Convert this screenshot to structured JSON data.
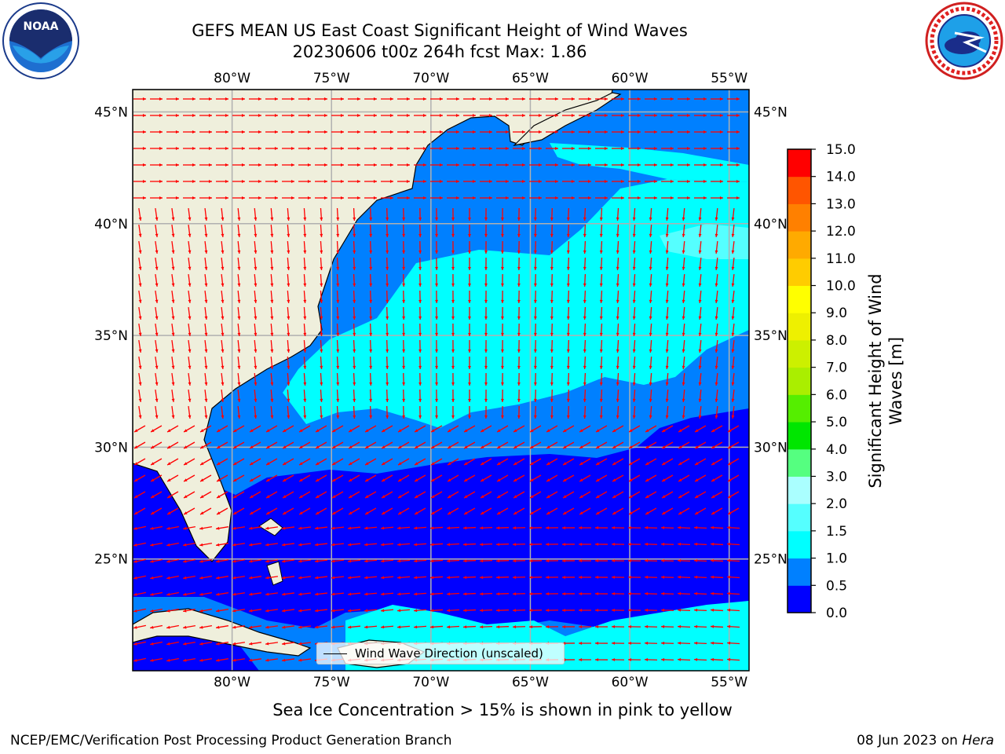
{
  "title": {
    "line1": "GEFS MEAN US East Coast Significant Height of Wind Waves",
    "line2": "20230606 t00z 264h fcst   Max: 1.86"
  },
  "logos": {
    "left": "noaa-logo-icon",
    "right": "nws-logo-icon",
    "left_text": "NOAA"
  },
  "map": {
    "lon_labels": [
      "80°W",
      "75°W",
      "70°W",
      "65°W",
      "60°W",
      "55°W"
    ],
    "lat_labels": [
      "45°N",
      "40°N",
      "35°N",
      "30°N",
      "25°N"
    ],
    "lon_range": [
      -85,
      -54
    ],
    "lat_range": [
      20,
      46
    ],
    "gridlines": true,
    "land_color": "#efefdc",
    "arrow_color": "#ff0000",
    "legend_label": "Wind Wave Direction (unscaled)",
    "legend_placement": "bottom-center"
  },
  "colorbar": {
    "label_line1": "Significant Height of Wind",
    "label_line2": "Waves [m]",
    "ticks": [
      "0.0",
      "0.5",
      "1.0",
      "1.5",
      "2.0",
      "3.0",
      "4.0",
      "5.0",
      "6.0",
      "7.0",
      "8.0",
      "9.0",
      "10.0",
      "11.0",
      "12.0",
      "13.0",
      "14.0",
      "15.0"
    ],
    "colors": [
      "#0000ff",
      "#0080ff",
      "#00ffff",
      "#55ffff",
      "#aaffff",
      "#55ff80",
      "#00e600",
      "#55ee00",
      "#aaee00",
      "#ccf000",
      "#eef000",
      "#ffff00",
      "#ffcc00",
      "#ffaa00",
      "#ff8000",
      "#ff5500",
      "#ff0000"
    ]
  },
  "subnote": "Sea Ice Concentration > 15% is shown in pink to yellow",
  "footer": {
    "left": "NCEP/EMC/Verification Post Processing Product Generation Branch",
    "right_prefix": "08 Jun 2023 on ",
    "right_host": "Hera"
  }
}
